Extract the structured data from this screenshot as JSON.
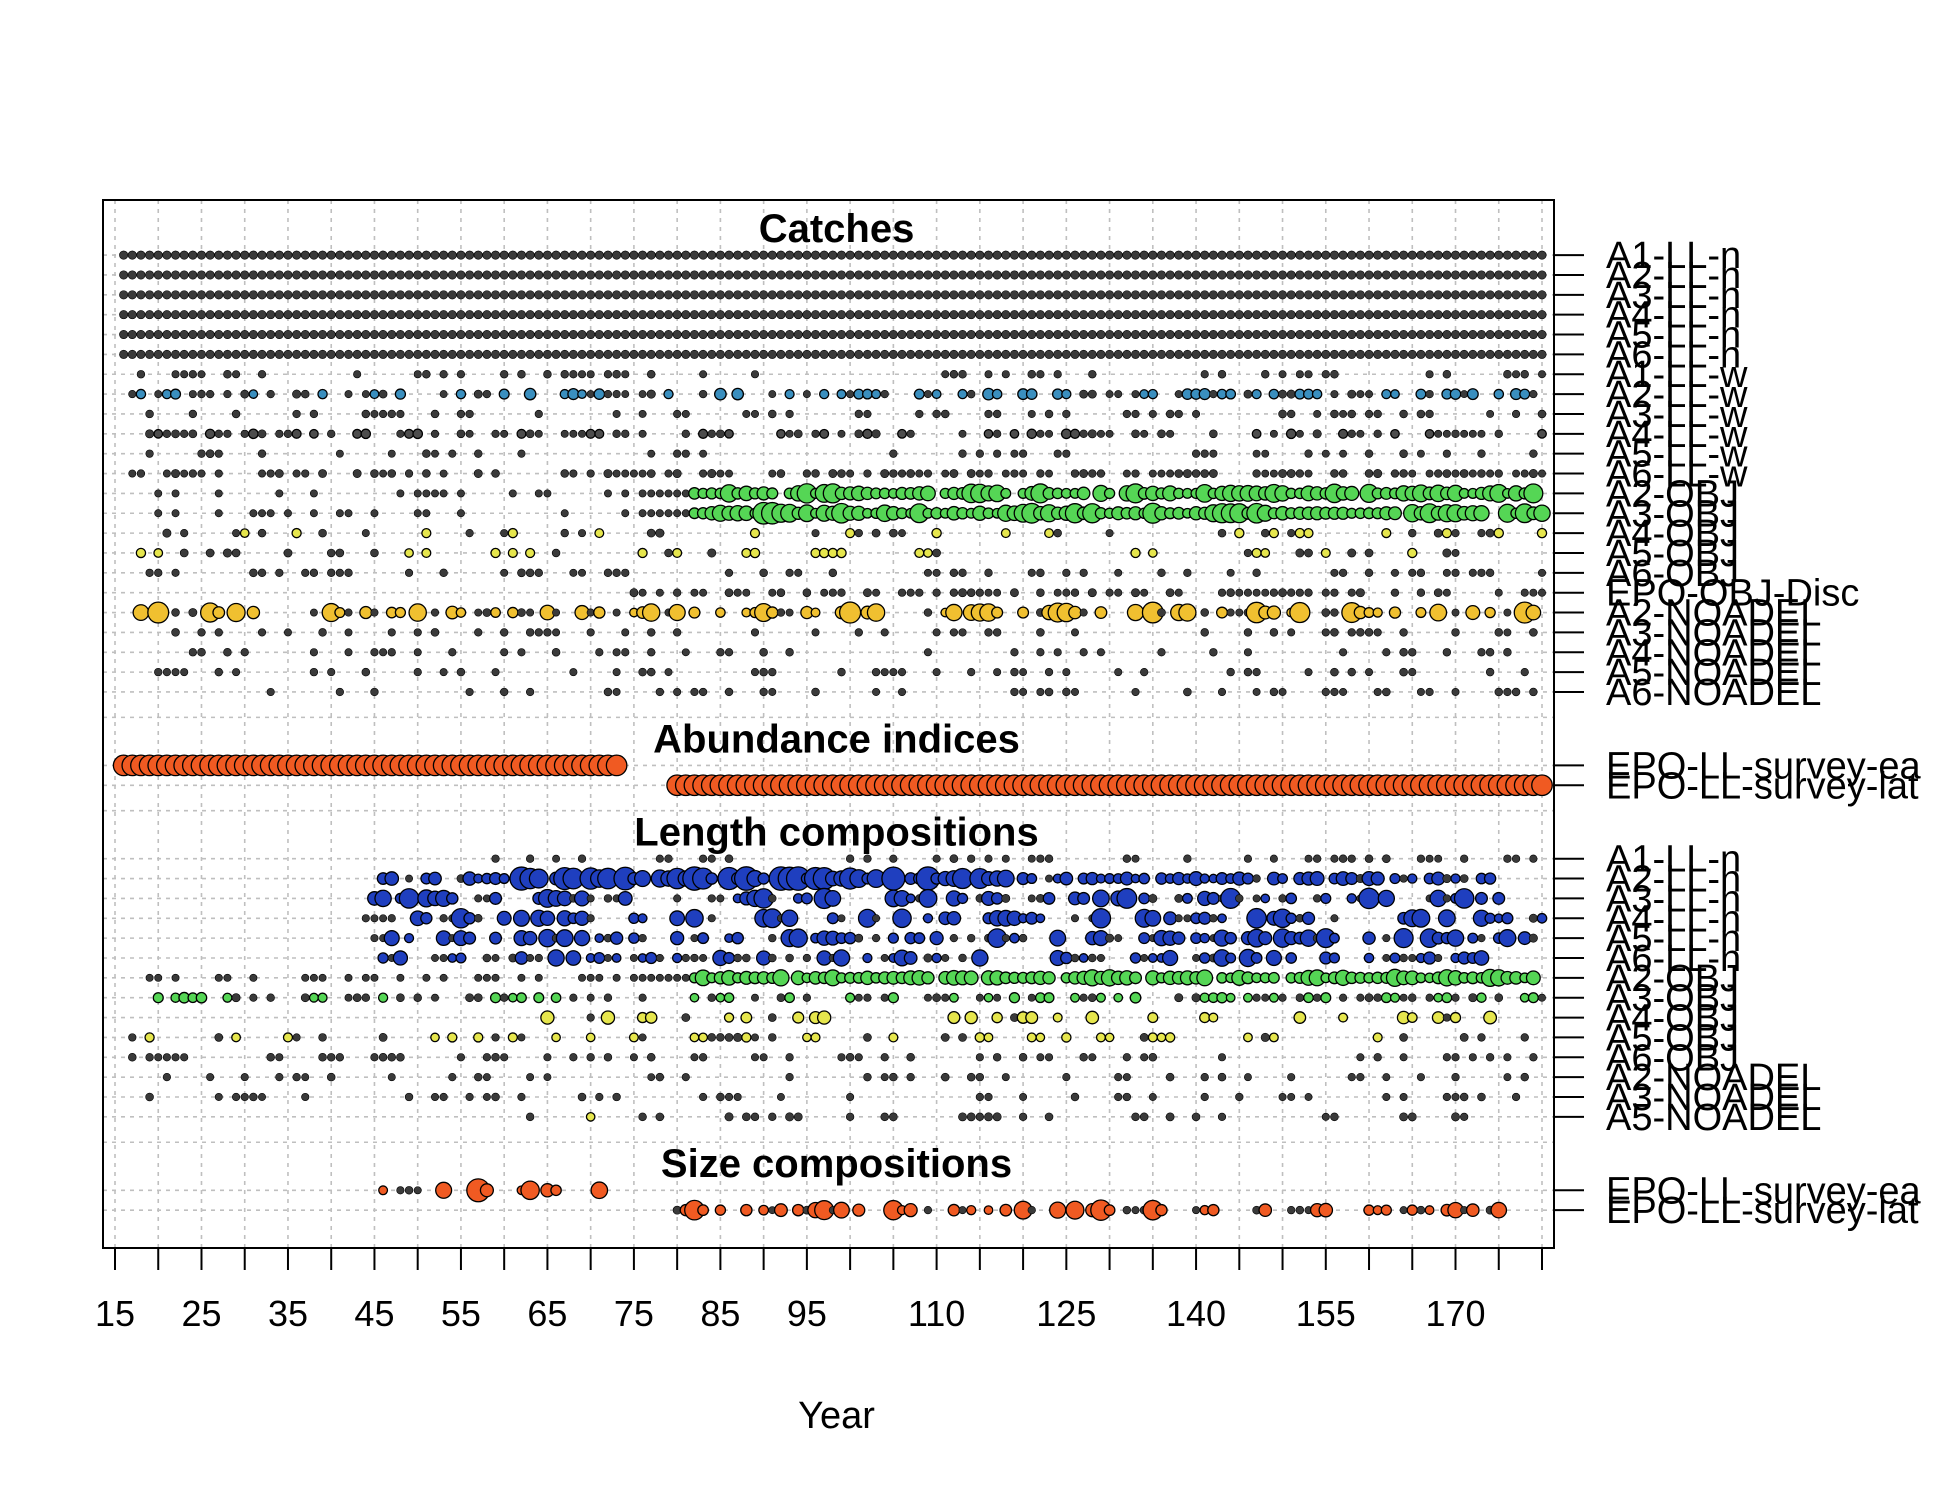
{
  "chart_data": {
    "type": "scatter",
    "title": "",
    "xlabel": "Year",
    "xlim": [
      15,
      180
    ],
    "x_ticks": [
      15,
      20,
      25,
      30,
      35,
      40,
      45,
      50,
      55,
      60,
      65,
      70,
      75,
      80,
      85,
      90,
      95,
      100,
      105,
      110,
      115,
      120,
      125,
      130,
      135,
      140,
      145,
      150,
      155,
      160,
      165,
      170,
      175,
      180
    ],
    "x_tick_labels": [
      "15",
      "25",
      "35",
      "45",
      "55",
      "65",
      "75",
      "85",
      "95",
      "110",
      "125",
      "140",
      "155",
      "170"
    ],
    "grid": true,
    "colors": {
      "catch_default": "#4d4d4d",
      "LL_n": "#1f3fbf",
      "LL_w": "#3a8fbf",
      "OBJ": "#55d655",
      "OBJ_yellow": "#e6e64d",
      "NOADEL": "#f0c030",
      "survey": "#f05a22"
    },
    "sections": [
      {
        "title": "Catches",
        "rows": [
          {
            "label": "A1-LL-n",
            "years": [
              16,
              180
            ],
            "density": "all",
            "max_size": 0.2,
            "color": "catch_default"
          },
          {
            "label": "A2-LL-n",
            "years": [
              16,
              180
            ],
            "density": "all",
            "max_size": 0.2,
            "color": "catch_default"
          },
          {
            "label": "A3-LL-n",
            "years": [
              16,
              180
            ],
            "density": "all",
            "max_size": 0.2,
            "color": "catch_default"
          },
          {
            "label": "A4-LL-n",
            "years": [
              16,
              180
            ],
            "density": "all",
            "max_size": 0.2,
            "color": "catch_default"
          },
          {
            "label": "A5-LL-n",
            "years": [
              16,
              180
            ],
            "density": "all",
            "max_size": 0.2,
            "color": "catch_default"
          },
          {
            "label": "A6-LL-n",
            "years": [
              16,
              180
            ],
            "density": "all",
            "max_size": 0.2,
            "color": "catch_default"
          },
          {
            "label": "A1-LL-w",
            "years": [
              17,
              180
            ],
            "density": "sparse",
            "max_size": 0.2,
            "color": "catch_default"
          },
          {
            "label": "A2-LL-w",
            "years": [
              17,
              180
            ],
            "density": "partial",
            "max_size": 0.35,
            "color": "LL_w"
          },
          {
            "label": "A3-LL-w",
            "years": [
              17,
              180
            ],
            "density": "sparse",
            "max_size": 0.2,
            "color": "catch_default"
          },
          {
            "label": "A4-LL-w",
            "years": [
              17,
              180
            ],
            "density": "partial",
            "max_size": 0.25,
            "color": "catch_default"
          },
          {
            "label": "A5-LL-w",
            "years": [
              17,
              180
            ],
            "density": "sparse",
            "max_size": 0.2,
            "color": "catch_default"
          },
          {
            "label": "A6-LL-w",
            "years": [
              17,
              180
            ],
            "density": "partial",
            "max_size": 0.2,
            "color": "catch_default"
          },
          {
            "label": "A2-OBJ",
            "years": [
              17,
              180
            ],
            "density": "dense_late",
            "max_size": 0.7,
            "color": "OBJ"
          },
          {
            "label": "A3-OBJ",
            "years": [
              16,
              180
            ],
            "density": "dense_late",
            "max_size": 0.8,
            "color": "OBJ"
          },
          {
            "label": "A4-OBJ",
            "years": [
              17,
              180
            ],
            "density": "sparse",
            "max_size": 0.3,
            "color": "OBJ_yellow"
          },
          {
            "label": "A5-OBJ",
            "years": [
              17,
              180
            ],
            "density": "sparse",
            "max_size": 0.3,
            "color": "OBJ_yellow"
          },
          {
            "label": "A6-OBJ",
            "years": [
              17,
              180
            ],
            "density": "sparse",
            "max_size": 0.2,
            "color": "catch_default"
          },
          {
            "label": "EPO-OBJ-Disc",
            "years": [
              75,
              180
            ],
            "density": "partial",
            "max_size": 0.2,
            "color": "catch_default"
          },
          {
            "label": "A2-NOADEL",
            "years": [
              17,
              180
            ],
            "density": "partial",
            "max_size": 0.8,
            "color": "NOADEL"
          },
          {
            "label": "A3-NOADEL",
            "years": [
              17,
              180
            ],
            "density": "sparse",
            "max_size": 0.2,
            "color": "catch_default"
          },
          {
            "label": "A4-NOADEL",
            "years": [
              17,
              180
            ],
            "density": "sparse",
            "max_size": 0.2,
            "color": "catch_default"
          },
          {
            "label": "A5-NOADEL",
            "years": [
              17,
              180
            ],
            "density": "sparse",
            "max_size": 0.2,
            "color": "catch_default"
          },
          {
            "label": "A6-NOADEL",
            "years": [
              33,
              180
            ],
            "density": "sparse",
            "max_size": 0.2,
            "color": "catch_default"
          }
        ]
      },
      {
        "title": "Abundance indices",
        "rows": [
          {
            "label": "EPO-LL-survey-ea",
            "years": [
              16,
              73
            ],
            "density": "all",
            "max_size": 0.75,
            "color": "survey"
          },
          {
            "label": "EPO-LL-survey-lat",
            "years": [
              80,
              180
            ],
            "density": "all",
            "max_size": 0.75,
            "color": "survey"
          }
        ]
      },
      {
        "title": "Length compositions",
        "rows": [
          {
            "label": "A1-LL-n",
            "years": [
              57,
              180
            ],
            "density": "sparse",
            "max_size": 0.2,
            "color": "catch_default"
          },
          {
            "label": "A2-LL-n",
            "years": [
              46,
              175
            ],
            "density": "dense_mid",
            "max_size": 0.9,
            "color": "LL_n"
          },
          {
            "label": "A3-LL-n",
            "years": [
              45,
              175
            ],
            "density": "partial",
            "max_size": 0.75,
            "color": "LL_n"
          },
          {
            "label": "A4-LL-n",
            "years": [
              44,
              180
            ],
            "density": "partial",
            "max_size": 0.7,
            "color": "LL_n"
          },
          {
            "label": "A5-LL-n",
            "years": [
              45,
              180
            ],
            "density": "partial",
            "max_size": 0.7,
            "color": "LL_n"
          },
          {
            "label": "A6-LL-n",
            "years": [
              46,
              175
            ],
            "density": "partial",
            "max_size": 0.6,
            "color": "LL_n"
          },
          {
            "label": "A2-OBJ",
            "years": [
              17,
              180
            ],
            "density": "dense_late",
            "max_size": 0.6,
            "color": "OBJ"
          },
          {
            "label": "A3-OBJ",
            "years": [
              17,
              180
            ],
            "density": "partial",
            "max_size": 0.3,
            "color": "OBJ"
          },
          {
            "label": "A4-OBJ",
            "years": [
              64,
              180
            ],
            "density": "sparse",
            "max_size": 0.6,
            "color": "OBJ_yellow"
          },
          {
            "label": "A5-OBJ",
            "years": [
              17,
              180
            ],
            "density": "sparse",
            "max_size": 0.3,
            "color": "OBJ_yellow"
          },
          {
            "label": "A6-OBJ",
            "years": [
              17,
              180
            ],
            "density": "sparse",
            "max_size": 0.2,
            "color": "catch_default"
          },
          {
            "label": "A2-NOADEL",
            "years": [
              17,
              180
            ],
            "density": "sparse",
            "max_size": 0.2,
            "color": "catch_default"
          },
          {
            "label": "A3-NOADEL",
            "years": [
              17,
              180
            ],
            "density": "sparse",
            "max_size": 0.2,
            "color": "catch_default"
          },
          {
            "label": "A5-NOADEL",
            "years": [
              61,
              175
            ],
            "density": "sparse",
            "max_size": 0.25,
            "color": "OBJ_yellow"
          }
        ]
      },
      {
        "title": "Size compositions",
        "rows": [
          {
            "label": "EPO-LL-survey-ea",
            "years": [
              46,
              72
            ],
            "density": "partial",
            "max_size": 0.9,
            "color": "survey"
          },
          {
            "label": "EPO-LL-survey-lat",
            "years": [
              80,
              176
            ],
            "density": "partial",
            "max_size": 0.75,
            "color": "survey"
          }
        ]
      }
    ]
  }
}
